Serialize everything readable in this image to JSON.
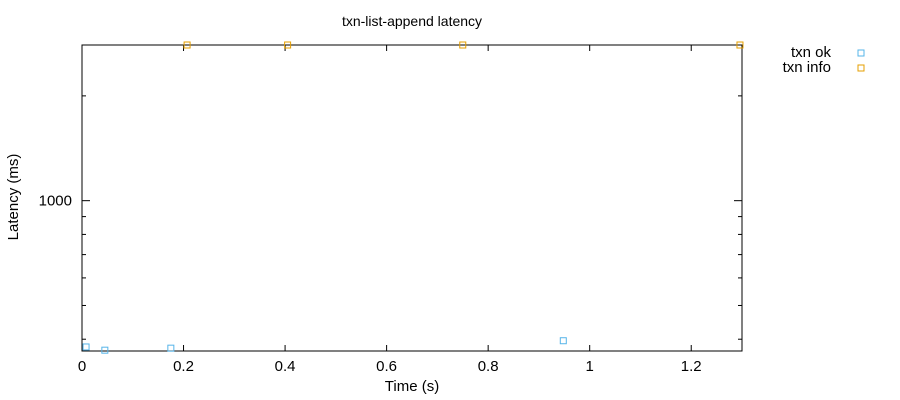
{
  "chart_data": {
    "type": "scatter",
    "title": "txn-list-append latency",
    "xlabel": "Time (s)",
    "ylabel": "Latency (ms)",
    "xlim": [
      0,
      1.3
    ],
    "ylim": [
      370,
      2800
    ],
    "y_scale": "log",
    "grid": false,
    "legend_position": "outside-top-right",
    "x_ticks": [
      0,
      0.2,
      0.4,
      0.6,
      0.8,
      1,
      1.2
    ],
    "x_tick_labels": [
      "0",
      "0.2",
      "0.4",
      "0.6",
      "0.8",
      "1",
      "1.2"
    ],
    "y_ticks_labeled": [
      1000
    ],
    "y_tick_labels": [
      "1000"
    ],
    "y_minor_ticks": [
      400,
      500,
      600,
      700,
      800,
      900,
      2000
    ],
    "series": [
      {
        "name": "txn ok",
        "color": "#56b4e9",
        "marker": "open-square",
        "points": [
          {
            "x": 0.008,
            "y": 380
          },
          {
            "x": 0.045,
            "y": 372
          },
          {
            "x": 0.175,
            "y": 377
          },
          {
            "x": 0.948,
            "y": 396
          }
        ]
      },
      {
        "name": "txn info",
        "color": "#e69f00",
        "marker": "open-square",
        "points": [
          {
            "x": 0.207,
            "y": 2800
          },
          {
            "x": 0.405,
            "y": 2800
          },
          {
            "x": 0.75,
            "y": 2800
          },
          {
            "x": 1.296,
            "y": 2800
          }
        ]
      }
    ]
  }
}
